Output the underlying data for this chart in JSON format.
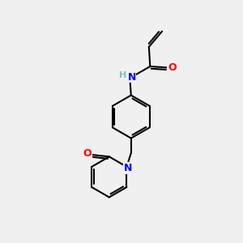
{
  "bg_color": "#f0f0f0",
  "atom_colors": {
    "C": "#000000",
    "N": "#0000ff",
    "O": "#ff0000",
    "H": "#7fbfbf"
  },
  "bond_color": "#000000",
  "bond_width": 1.5,
  "font_size_atoms": 9,
  "figsize": [
    3.0,
    3.0
  ],
  "dpi": 100
}
